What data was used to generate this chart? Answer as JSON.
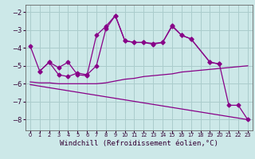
{
  "background_color": "#cce8e8",
  "grid_color": "#aacccc",
  "line_color": "#880088",
  "xlabel": "Windchill (Refroidissement éolien,°C)",
  "xlabel_fontsize": 6.5,
  "xlim": [
    -0.5,
    23.5
  ],
  "ylim": [
    -8.6,
    -1.6
  ],
  "yticks": [
    -8,
    -7,
    -6,
    -5,
    -4,
    -3,
    -2
  ],
  "xticks": [
    0,
    1,
    2,
    3,
    4,
    5,
    6,
    7,
    8,
    9,
    10,
    11,
    12,
    13,
    14,
    15,
    16,
    17,
    18,
    19,
    20,
    21,
    22,
    23
  ],
  "line1_x": [
    0,
    1,
    2,
    3,
    4,
    5,
    6,
    7,
    8,
    9,
    10,
    11,
    12,
    13,
    14,
    15,
    16,
    17,
    19,
    20
  ],
  "line1_y": [
    -3.9,
    -5.3,
    -4.8,
    -5.1,
    -4.8,
    -5.5,
    -5.55,
    -3.3,
    -2.8,
    -2.2,
    -3.6,
    -3.7,
    -3.7,
    -3.8,
    -3.7,
    -2.8,
    -3.3,
    -3.5,
    -4.8,
    -4.9
  ],
  "line2_x": [
    1,
    2,
    3,
    4,
    5,
    6,
    7,
    8,
    9,
    10,
    11,
    12,
    13,
    14,
    15,
    16,
    17,
    19,
    20,
    21,
    22,
    23
  ],
  "line2_y": [
    -5.3,
    -4.8,
    -5.5,
    -5.6,
    -5.4,
    -5.5,
    -5.0,
    -2.95,
    -2.2,
    -3.6,
    -3.7,
    -3.7,
    -3.75,
    -3.7,
    -2.75,
    -3.3,
    -3.5,
    -4.8,
    -4.9,
    -7.2,
    -7.2,
    -8.0
  ],
  "line3_x": [
    0,
    1,
    2,
    3,
    4,
    5,
    6,
    7,
    8,
    9,
    10,
    11,
    12,
    13,
    14,
    15,
    16,
    17,
    18,
    19,
    20,
    21,
    22,
    23
  ],
  "line3_y": [
    -5.9,
    -5.95,
    -5.95,
    -6.0,
    -6.0,
    -6.0,
    -6.0,
    -6.0,
    -5.95,
    -5.85,
    -5.75,
    -5.7,
    -5.6,
    -5.55,
    -5.5,
    -5.45,
    -5.35,
    -5.3,
    -5.25,
    -5.2,
    -5.15,
    -5.1,
    -5.05,
    -5.0
  ],
  "line4_x": [
    0,
    23
  ],
  "line4_y": [
    -6.05,
    -8.0
  ]
}
